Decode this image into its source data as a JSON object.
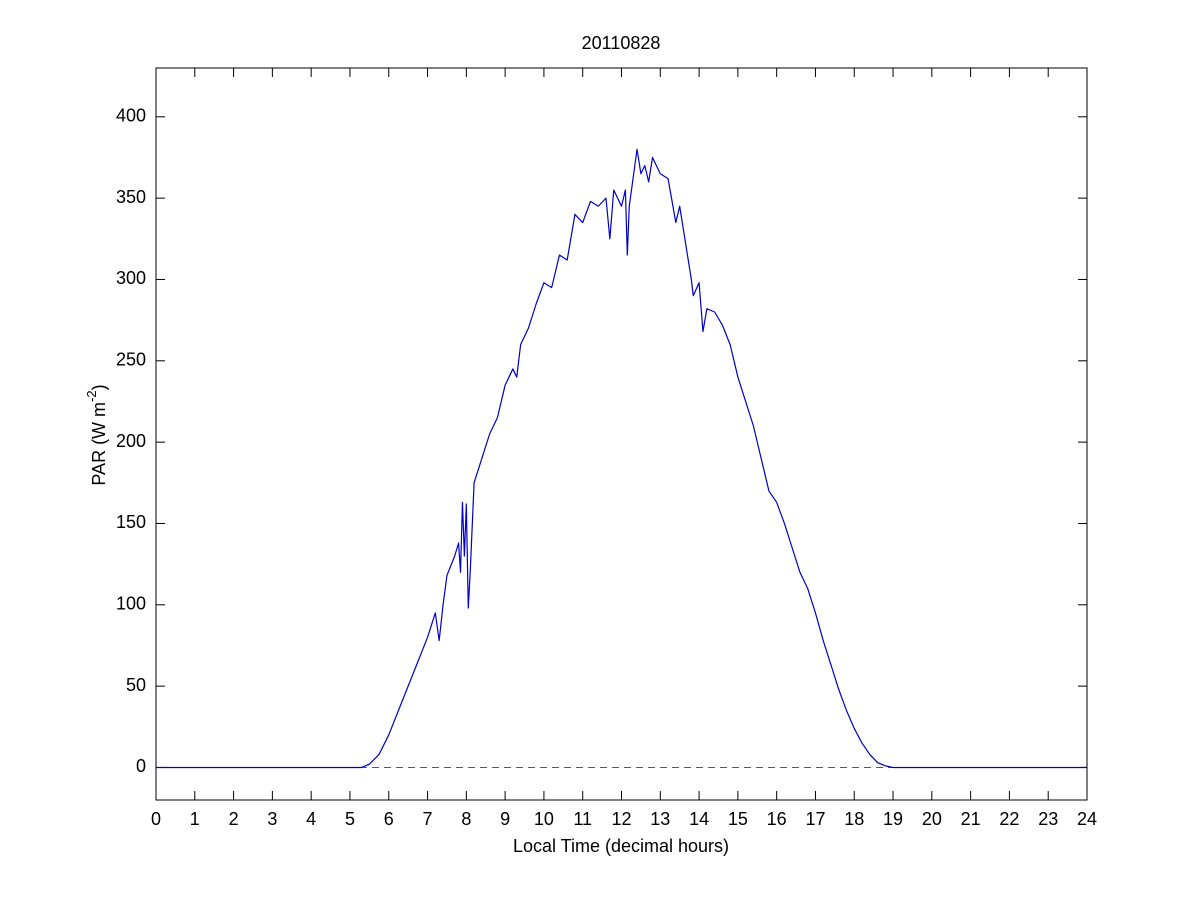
{
  "chart_data": {
    "type": "line",
    "title": "20110828",
    "xlabel": "Local Time (decimal hours)",
    "ylabel": {
      "text": "PAR (W m",
      "superscript": "-2",
      "suffix": ")"
    },
    "x": [
      0,
      5.3,
      5.5,
      5.75,
      6.0,
      6.25,
      6.5,
      6.75,
      7.0,
      7.2,
      7.3,
      7.4,
      7.5,
      7.7,
      7.8,
      7.85,
      7.9,
      7.95,
      8.0,
      8.05,
      8.1,
      8.2,
      8.4,
      8.6,
      8.8,
      9.0,
      9.2,
      9.3,
      9.4,
      9.6,
      9.8,
      10.0,
      10.2,
      10.4,
      10.6,
      10.8,
      11.0,
      11.2,
      11.4,
      11.6,
      11.7,
      11.8,
      12.0,
      12.1,
      12.15,
      12.2,
      12.4,
      12.5,
      12.6,
      12.7,
      12.8,
      13.0,
      13.2,
      13.4,
      13.5,
      13.6,
      13.8,
      13.85,
      14.0,
      14.1,
      14.2,
      14.4,
      14.6,
      14.8,
      15.0,
      15.2,
      15.4,
      15.6,
      15.8,
      16.0,
      16.2,
      16.4,
      16.6,
      16.8,
      17.0,
      17.2,
      17.4,
      17.6,
      17.8,
      18.0,
      18.2,
      18.4,
      18.6,
      18.8,
      19.0,
      19.2,
      24
    ],
    "values": [
      0,
      0,
      2,
      8,
      20,
      35,
      50,
      65,
      80,
      95,
      78,
      100,
      118,
      130,
      138,
      120,
      163,
      130,
      162,
      98,
      120,
      175,
      190,
      205,
      215,
      235,
      245,
      240,
      260,
      270,
      285,
      298,
      295,
      315,
      312,
      340,
      335,
      348,
      345,
      350,
      325,
      355,
      345,
      355,
      315,
      345,
      380,
      365,
      370,
      360,
      375,
      365,
      362,
      335,
      345,
      330,
      300,
      290,
      298,
      268,
      282,
      280,
      272,
      260,
      240,
      225,
      210,
      190,
      170,
      163,
      150,
      135,
      120,
      110,
      95,
      78,
      63,
      48,
      35,
      24,
      15,
      8,
      3,
      1,
      0,
      0,
      0
    ],
    "color": "#0000c8",
    "reference_line": {
      "value": 0,
      "color": "#e02020",
      "style": "dashed"
    },
    "xlim": [
      0,
      24
    ],
    "xticks": [
      0,
      1,
      2,
      3,
      4,
      5,
      6,
      7,
      8,
      9,
      10,
      11,
      12,
      13,
      14,
      15,
      16,
      17,
      18,
      19,
      20,
      21,
      22,
      23,
      24
    ],
    "ylim": [
      -20,
      430
    ],
    "yticks": [
      0,
      50,
      100,
      150,
      200,
      250,
      300,
      350,
      400
    ],
    "grid": false
  }
}
